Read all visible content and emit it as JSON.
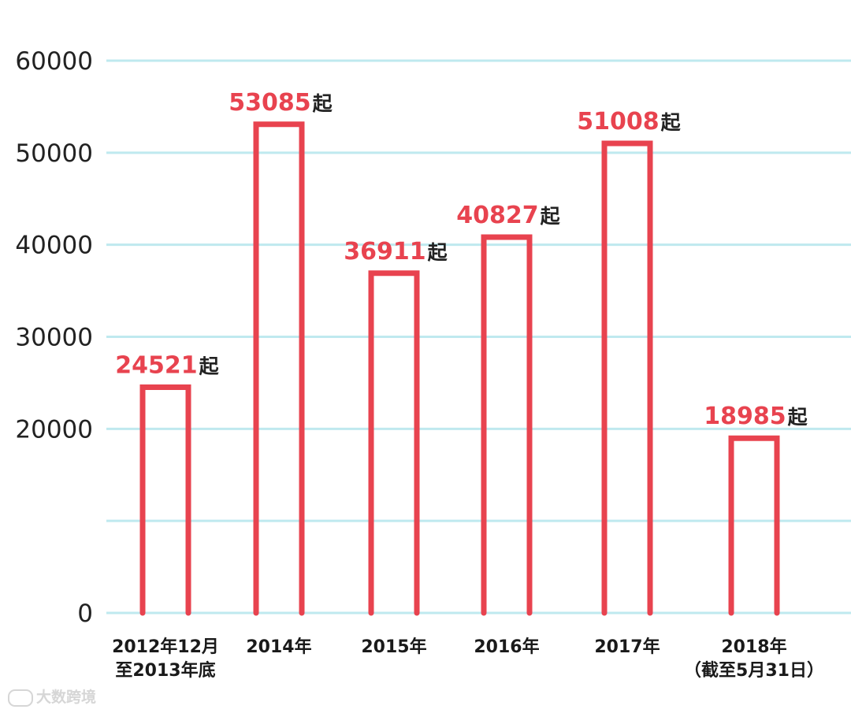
{
  "chart_data": {
    "type": "bar",
    "categories": [
      [
        "2012年12月",
        "至2013年底"
      ],
      [
        "2014年"
      ],
      [
        "2015年"
      ],
      [
        "2016年"
      ],
      [
        "2017年"
      ],
      [
        "2018年",
        "（截至5月31日）"
      ]
    ],
    "values": [
      24521,
      53085,
      36911,
      40827,
      51008,
      18985
    ],
    "value_labels": [
      "24521",
      "53085",
      "36911",
      "40827",
      "51008",
      "18985"
    ],
    "value_unit": "起",
    "y_ticks": [
      0,
      20000,
      30000,
      40000,
      50000,
      60000
    ],
    "y_tick_labels": [
      "0",
      "20000",
      "30000",
      "40000",
      "50000",
      "60000"
    ],
    "ylim": [
      0,
      60000
    ],
    "grid": true,
    "colors": {
      "bar": "#e8434f",
      "value_text": "#e8434f",
      "grid": "#bfe9ef"
    }
  },
  "watermark": {
    "text": "大数跨境"
  }
}
